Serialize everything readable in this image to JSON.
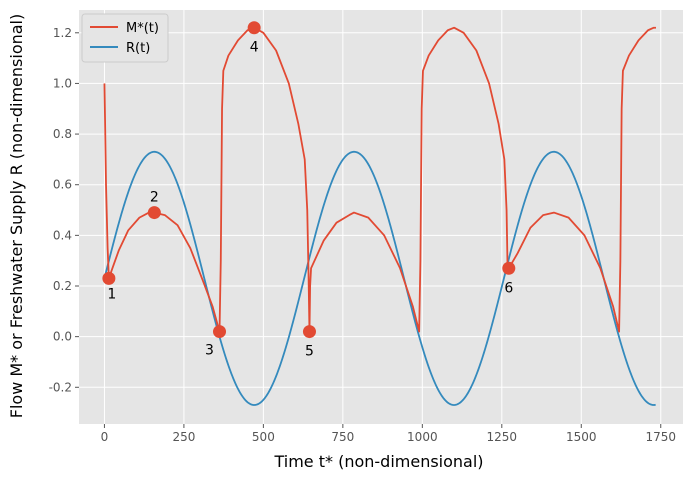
{
  "chart_data": {
    "type": "line",
    "title": "",
    "xlabel": "Time t* (non-dimensional)",
    "ylabel": "Flow M* or Freshwater Supply R (non-dimensional)",
    "xlim": [
      -80,
      1820
    ],
    "ylim": [
      -0.345,
      1.29
    ],
    "xticks": [
      0,
      250,
      500,
      750,
      1000,
      1250,
      1500,
      1750
    ],
    "yticks": [
      -0.2,
      0.0,
      0.2,
      0.4,
      0.6,
      0.8,
      1.0,
      1.2
    ],
    "grid": true,
    "legend_position": "top-left",
    "colors": {
      "M": "#e24a33",
      "R": "#348abd",
      "background": "#e5e5e5",
      "grid": "#ffffff"
    },
    "R_model": {
      "mean": 0.23,
      "amplitude": 0.5,
      "period": 628.3,
      "phase_start": 0,
      "t_max": 1735
    },
    "series": [
      {
        "name": "M*(t)",
        "color": "#e24a33",
        "points": [
          [
            0,
            1.0
          ],
          [
            2,
            0.85
          ],
          [
            5,
            0.6
          ],
          [
            10,
            0.35
          ],
          [
            14,
            0.23
          ],
          [
            25,
            0.27
          ],
          [
            45,
            0.34
          ],
          [
            75,
            0.42
          ],
          [
            110,
            0.47
          ],
          [
            140,
            0.49
          ],
          [
            157,
            0.49
          ],
          [
            190,
            0.48
          ],
          [
            230,
            0.44
          ],
          [
            270,
            0.35
          ],
          [
            310,
            0.22
          ],
          [
            340,
            0.12
          ],
          [
            362,
            0.02
          ],
          [
            366,
            0.3
          ],
          [
            370,
            0.9
          ],
          [
            374,
            1.05
          ],
          [
            390,
            1.11
          ],
          [
            420,
            1.17
          ],
          [
            450,
            1.21
          ],
          [
            471,
            1.22
          ],
          [
            500,
            1.2
          ],
          [
            540,
            1.13
          ],
          [
            580,
            1.0
          ],
          [
            610,
            0.84
          ],
          [
            630,
            0.7
          ],
          [
            638,
            0.5
          ],
          [
            642,
            0.25
          ],
          [
            645,
            0.02
          ],
          [
            647,
            0.2
          ],
          [
            650,
            0.27
          ],
          [
            690,
            0.38
          ],
          [
            730,
            0.45
          ],
          [
            770,
            0.48
          ],
          [
            785,
            0.49
          ],
          [
            830,
            0.47
          ],
          [
            880,
            0.4
          ],
          [
            930,
            0.27
          ],
          [
            970,
            0.12
          ],
          [
            990,
            0.02
          ],
          [
            994,
            0.3
          ],
          [
            998,
            0.9
          ],
          [
            1002,
            1.05
          ],
          [
            1020,
            1.11
          ],
          [
            1050,
            1.17
          ],
          [
            1080,
            1.21
          ],
          [
            1100,
            1.22
          ],
          [
            1130,
            1.2
          ],
          [
            1170,
            1.13
          ],
          [
            1210,
            1.0
          ],
          [
            1240,
            0.84
          ],
          [
            1258,
            0.7
          ],
          [
            1265,
            0.5
          ],
          [
            1268,
            0.28
          ],
          [
            1272,
            0.27
          ],
          [
            1300,
            0.33
          ],
          [
            1340,
            0.43
          ],
          [
            1380,
            0.48
          ],
          [
            1414,
            0.49
          ],
          [
            1460,
            0.47
          ],
          [
            1510,
            0.4
          ],
          [
            1560,
            0.27
          ],
          [
            1600,
            0.12
          ],
          [
            1619,
            0.02
          ],
          [
            1623,
            0.3
          ],
          [
            1627,
            0.9
          ],
          [
            1631,
            1.05
          ],
          [
            1650,
            1.11
          ],
          [
            1680,
            1.17
          ],
          [
            1710,
            1.21
          ],
          [
            1728,
            1.22
          ],
          [
            1735,
            1.22
          ]
        ]
      },
      {
        "name": "R(t)",
        "color": "#348abd"
      }
    ],
    "annotations": [
      {
        "label": "1",
        "x": 14,
        "y": 0.23,
        "label_pos": "below-right"
      },
      {
        "label": "2",
        "x": 157,
        "y": 0.49,
        "label_pos": "above"
      },
      {
        "label": "3",
        "x": 362,
        "y": 0.02,
        "label_pos": "below-left"
      },
      {
        "label": "4",
        "x": 471,
        "y": 1.22,
        "label_pos": "below"
      },
      {
        "label": "5",
        "x": 645,
        "y": 0.02,
        "label_pos": "below"
      },
      {
        "label": "6",
        "x": 1272,
        "y": 0.27,
        "label_pos": "below"
      }
    ]
  }
}
